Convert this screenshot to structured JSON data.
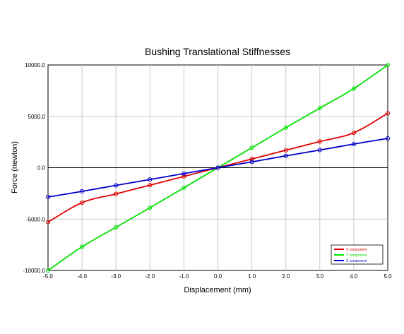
{
  "chart_data": {
    "type": "line",
    "title": "Bushing Translational Stiffnesses",
    "xlabel": "Displacement (mm)",
    "ylabel": "Force (newton)",
    "xlim": [
      -5.0,
      5.0
    ],
    "ylim": [
      -10000.0,
      10000.0
    ],
    "x_ticks": [
      "-5.0",
      "-4.0",
      "-3.0",
      "-2.0",
      "-1.0",
      "0.0",
      "1.0",
      "2.0",
      "3.0",
      "4.0",
      "5.0"
    ],
    "y_ticks": [
      "-10000.0",
      "-5000.0",
      "0.0",
      "5000.0",
      "10000.0"
    ],
    "grid": true,
    "legend_position": "bottom-right",
    "x": [
      -5.0,
      -4.0,
      -3.0,
      -2.0,
      -1.0,
      0.0,
      1.0,
      2.0,
      3.0,
      4.0,
      5.0
    ],
    "series": [
      {
        "name": "X component",
        "color": "#e00000",
        "values": [
          -5300,
          -3400,
          -2550,
          -1700,
          -850,
          0,
          850,
          1700,
          2550,
          3400,
          5300
        ]
      },
      {
        "name": "Y component",
        "color": "#00e000",
        "values": [
          -10000,
          -7700,
          -5800,
          -3900,
          -1950,
          0,
          1950,
          3900,
          5800,
          7700,
          10000
        ]
      },
      {
        "name": "Z component",
        "color": "#0000cc",
        "values": [
          -2850,
          -2300,
          -1720,
          -1150,
          -570,
          0,
          570,
          1150,
          1720,
          2300,
          2850
        ]
      }
    ]
  }
}
